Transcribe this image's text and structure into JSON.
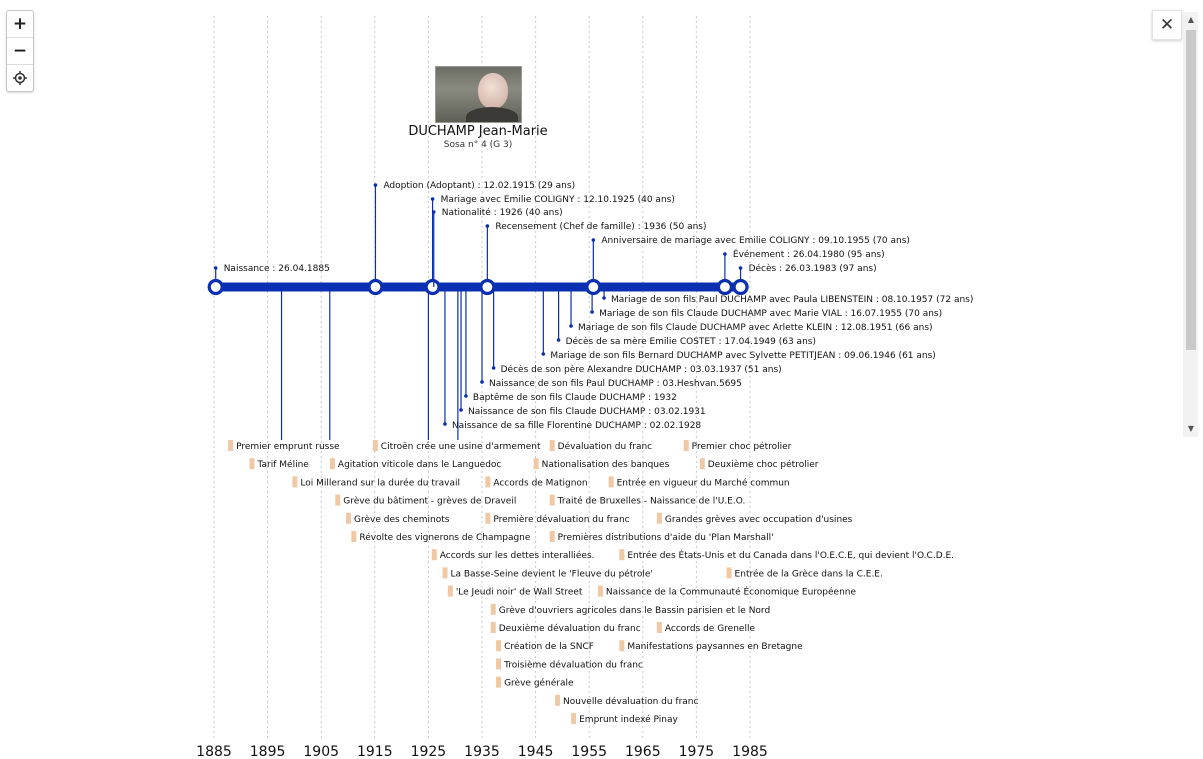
{
  "person": {
    "name": "DUCHAMP Jean-Marie",
    "sosa": "Sosa n° 4 (G 3)",
    "photo_icon": "portrait-photo"
  },
  "controls": {
    "zoom_in": "+",
    "zoom_out": "−",
    "locate_icon": "crosshair-icon",
    "close": "✕"
  },
  "axis": {
    "ticks": [
      "1885",
      "1895",
      "1905",
      "1915",
      "1925",
      "1935",
      "1945",
      "1955",
      "1965",
      "1975",
      "1985"
    ]
  },
  "colors": {
    "timeline": "#0a2fb0",
    "history_marker": "#f0c9a4",
    "grid": "#c8c8c8"
  },
  "events_above": [
    {
      "year": 1885.32,
      "text": "Naissance : 26.04.1885",
      "main": true
    },
    {
      "year": 1915.12,
      "text": "Adoption (Adoptant) : 12.02.1915 (29 ans)",
      "main": true
    },
    {
      "year": 1925.78,
      "text": "Mariage avec Emilie COLIGNY : 12.10.1925 (40 ans)",
      "main": true
    },
    {
      "year": 1926.0,
      "text": "Nationalité : 1926 (40 ans)",
      "main": false
    },
    {
      "year": 1936.0,
      "text": "Recensement (Chef de famille) : 1936 (50 ans)",
      "main": true
    },
    {
      "year": 1955.77,
      "text": "Anniversaire de mariage avec Emilie COLIGNY : 09.10.1955 (70 ans)",
      "main": true
    },
    {
      "year": 1980.32,
      "text": "Événement : 26.04.1980 (95 ans)",
      "main": true
    },
    {
      "year": 1983.24,
      "text": "Décès : 26.03.1983 (97 ans)",
      "main": true
    }
  ],
  "events_below": [
    {
      "year": 1957.77,
      "text": "Mariage de son fils Paul DUCHAMP avec Paula LIBENSTEIN : 08.10.1957 (72 ans)"
    },
    {
      "year": 1955.54,
      "text": "Mariage de son fils Claude DUCHAMP avec Marie VIAL : 16.07.1955 (70 ans)"
    },
    {
      "year": 1951.61,
      "text": "Mariage de son fils Claude DUCHAMP avec Arlette KLEIN : 12.08.1951 (66 ans)"
    },
    {
      "year": 1949.29,
      "text": "Décès de sa mère Emilie COSTET : 17.04.1949 (63 ans)"
    },
    {
      "year": 1946.44,
      "text": "Mariage de son fils Bernard DUCHAMP avec Sylvette PETITJEAN : 09.06.1946 (61 ans)"
    },
    {
      "year": 1937.17,
      "text": "Décès de son père Alexandre DUCHAMP : 03.03.1937 (51 ans)"
    },
    {
      "year": 1935.0,
      "text": "Naissance de son fils Paul DUCHAMP : 03.Heshvan.5695"
    },
    {
      "year": 1932.0,
      "text": "Baptême de son fils Claude DUCHAMP : 1932"
    },
    {
      "year": 1931.09,
      "text": "Naissance de son fils Claude DUCHAMP : 03.02.1931"
    },
    {
      "year": 1928.09,
      "text": "Naissance de sa fille Florentine DUCHAMP : 02.02.1928"
    }
  ],
  "history": [
    {
      "year": 1888,
      "row": 0,
      "text": "Premier emprunt russe"
    },
    {
      "year": 1915,
      "row": 0,
      "text": "Citroën crée une usine d'armement"
    },
    {
      "year": 1948,
      "row": 0,
      "text": "Dévaluation du franc"
    },
    {
      "year": 1973,
      "row": 0,
      "text": "Premier choc pétrolier"
    },
    {
      "year": 1892,
      "row": 1,
      "text": "Tarif Méline"
    },
    {
      "year": 1907,
      "row": 1,
      "text": "Agitation viticole dans le Languedoc"
    },
    {
      "year": 1945,
      "row": 1,
      "text": "Nationalisation des banques"
    },
    {
      "year": 1976,
      "row": 1,
      "text": "Deuxième choc pétrolier"
    },
    {
      "year": 1900,
      "row": 2,
      "text": "Loi Millerand sur la durée du travail"
    },
    {
      "year": 1936,
      "row": 2,
      "text": "Accords de Matignon"
    },
    {
      "year": 1959,
      "row": 2,
      "text": "Entrée en vigueur du Marché commun"
    },
    {
      "year": 1908,
      "row": 3,
      "text": "Grève du bâtiment - grèves de Draveil"
    },
    {
      "year": 1948,
      "row": 3,
      "text": "Traité de Bruxelles - Naissance de l'U.E.O."
    },
    {
      "year": 1910,
      "row": 4,
      "text": "Grève des cheminots"
    },
    {
      "year": 1936,
      "row": 4,
      "text": "Première dévaluation du franc"
    },
    {
      "year": 1968,
      "row": 4,
      "text": "Grandes grèves avec occupation d'usines"
    },
    {
      "year": 1911,
      "row": 5,
      "text": "Révolte des vignerons de Champagne"
    },
    {
      "year": 1948,
      "row": 5,
      "text": "Premières distributions d'aide du 'Plan Marshall'"
    },
    {
      "year": 1926,
      "row": 6,
      "text": "Accords sur les dettes interalliées."
    },
    {
      "year": 1961,
      "row": 6,
      "text": "Entrée des États-Unis et du Canada dans l'O.E.C.E, qui devient l'O.C.D.E."
    },
    {
      "year": 1928,
      "row": 7,
      "text": "La Basse-Seine devient le 'Fleuve du pétrole'"
    },
    {
      "year": 1981,
      "row": 7,
      "text": "Entrée de la Grèce dans la C.E.E."
    },
    {
      "year": 1929,
      "row": 8,
      "text": "'Le Jeudi noir' de Wall Street"
    },
    {
      "year": 1957,
      "row": 8,
      "text": "Naissance de la Communauté Économique Européenne"
    },
    {
      "year": 1937,
      "row": 9,
      "text": "Grève d'ouvriers agricoles dans le Bassin parisien et le Nord"
    },
    {
      "year": 1937,
      "row": 10,
      "text": "Deuxième dévaluation du franc"
    },
    {
      "year": 1968,
      "row": 10,
      "text": "Accords de Grenelle"
    },
    {
      "year": 1938,
      "row": 11,
      "text": "Création de la SNCF"
    },
    {
      "year": 1961,
      "row": 11,
      "text": "Manifestations paysannes en Bretagne"
    },
    {
      "year": 1938,
      "row": 12,
      "text": "Troisième dévaluation du franc"
    },
    {
      "year": 1938,
      "row": 13,
      "text": "Grève générale"
    },
    {
      "year": 1949,
      "row": 14,
      "text": "Nouvelle dévaluation du franc"
    },
    {
      "year": 1952,
      "row": 15,
      "text": "Emprunt indexé Pinay"
    }
  ]
}
